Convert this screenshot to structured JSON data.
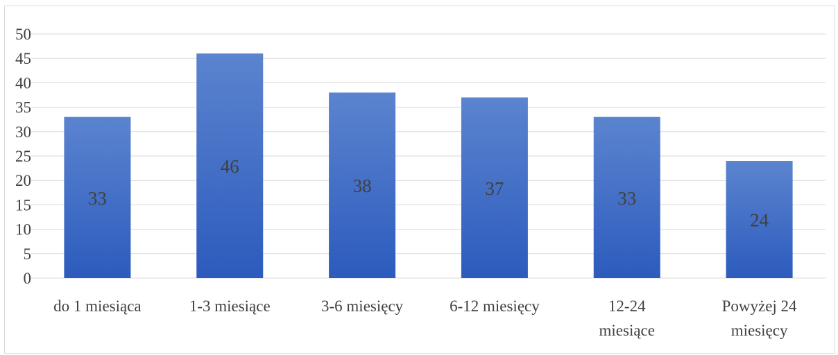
{
  "chart_data": {
    "type": "bar",
    "title": "",
    "xlabel": "",
    "ylabel": "",
    "categories": [
      [
        "do 1 miesiąca"
      ],
      [
        "1-3 miesiące"
      ],
      [
        "3-6 miesięcy"
      ],
      [
        "6-12 miesięcy"
      ],
      [
        "12-24",
        "miesiące"
      ],
      [
        "Powyżej 24",
        "miesięcy"
      ]
    ],
    "values": [
      33,
      46,
      38,
      37,
      33,
      24
    ],
    "ylim": [
      0,
      50
    ],
    "yticks": [
      0,
      5,
      10,
      15,
      20,
      25,
      30,
      35,
      40,
      45,
      50
    ],
    "grid": true,
    "legend": "none",
    "colors": {
      "bar_top": "#5b84cf",
      "bar_bottom": "#2c5bbd",
      "grid": "#d9d9d9",
      "text": "#404040"
    }
  }
}
